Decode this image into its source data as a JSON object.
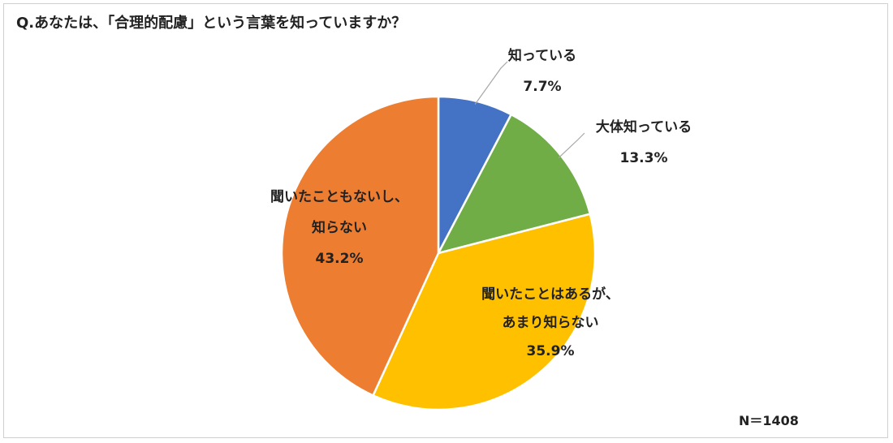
{
  "chart_data": {
    "type": "pie",
    "title": "Q.あなたは、「合理的配慮」という言葉を知っていますか？",
    "slices": [
      {
        "label_lines": [
          "知っている"
        ],
        "value": 7.7,
        "value_text": "7.7%",
        "color": "#4472C4"
      },
      {
        "label_lines": [
          "大体知っている"
        ],
        "value": 13.3,
        "value_text": "13.3%",
        "color": "#70AD47"
      },
      {
        "label_lines": [
          "聞いたことはあるが、",
          "あまり知らない"
        ],
        "value": 35.9,
        "value_text": "35.9%",
        "color": "#FFC000"
      },
      {
        "label_lines": [
          "聞いたこともないし、",
          "知らない"
        ],
        "value": 43.2,
        "value_text": "43.2%",
        "color": "#ED7D31"
      }
    ],
    "start_angle": "12 o'clock",
    "direction": "clockwise",
    "note": "N＝1408"
  }
}
